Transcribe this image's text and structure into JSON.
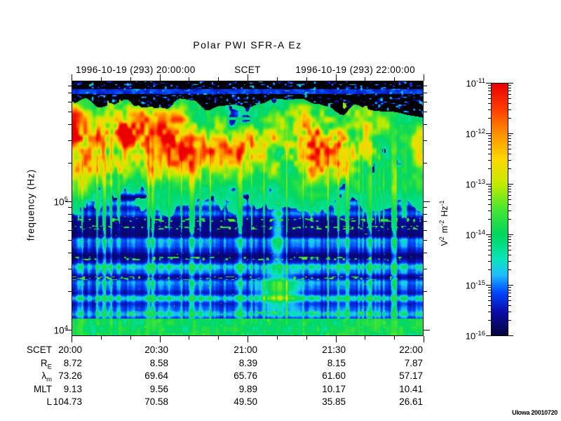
{
  "title": "Polar PWI SFR-A Ez",
  "header": {
    "start_datetime": "1996-10-19 (293) 20:00:00",
    "axis_title": "SCET",
    "end_datetime": "1996-10-19 (293) 22:00:00"
  },
  "y_axis": {
    "label": "frequency (Hz)",
    "major_ticks": [
      {
        "base": "10",
        "exp": "5"
      },
      {
        "base": "10",
        "exp": "4"
      }
    ]
  },
  "colorbar": {
    "tick_exps": [
      "-11",
      "-12",
      "-13",
      "-14",
      "-15",
      "-16"
    ],
    "tick_base": "10",
    "unit": {
      "v": "V",
      "v_exp": "2",
      "m": "m",
      "m_exp": "-2",
      "hz": "Hz",
      "hz_exp": "-1"
    }
  },
  "footer_rows": [
    {
      "label": "SCET",
      "sub": "",
      "values": [
        "20:00",
        "20:30",
        "21:00",
        "21:30",
        "22:00"
      ]
    },
    {
      "label": "R",
      "sub": "E",
      "values": [
        "8.72",
        "8.58",
        "8.39",
        "8.15",
        "7.87"
      ]
    },
    {
      "label": "λ",
      "sub": "m",
      "values": [
        "73.26",
        "69.64",
        "65.76",
        "61.60",
        "57.17"
      ]
    },
    {
      "label": "MLT",
      "sub": "",
      "values": [
        "9.13",
        "9.56",
        "9.89",
        "10.17",
        "10.41"
      ]
    },
    {
      "label": "L",
      "sub": "",
      "values": [
        "104.73",
        "70.58",
        "49.50",
        "35.85",
        "26.61"
      ]
    }
  ],
  "credit": "UIowa 20010720",
  "chart_data": {
    "type": "heatmap",
    "title": "Polar PWI SFR-A Ez",
    "xlabel": "SCET",
    "ylabel": "frequency (Hz)",
    "x_date": "1996-10-19",
    "x_doy": 293,
    "x_range": [
      "20:00:00",
      "22:00:00"
    ],
    "x_ticks": [
      "20:00",
      "20:30",
      "21:00",
      "21:30",
      "22:00"
    ],
    "y_scale": "log",
    "y_range_hz": [
      9000,
      870000
    ],
    "y_tick_values_hz": [
      10000,
      100000
    ],
    "z_unit": "V^2 m^-2 Hz^-1",
    "z_scale": "log",
    "z_range": [
      1e-16,
      1e-11
    ],
    "colorbar_tick_values": [
      1e-11,
      1e-12,
      1e-13,
      1e-14,
      1e-15,
      1e-16
    ],
    "colormap": "rainbow (dark blue -> blue -> cyan -> green -> yellow -> orange -> red)",
    "features": [
      "Intense broadband emission band (green/yellow/orange/red, ~1e-13 to 1e-11 V^2 m^-2 Hz^-1) between roughly 150 kHz and 800 kHz across the full interval, strongest cores 20:05-20:25 and 21:15-21:40",
      "Black band with sparse blue speckles at top of plot above ~700 kHz, thicker after 21:30",
      "Blue low-intensity background (~1e-15 to 1e-16) below ~100 kHz with horizontal banding and fine vertical cyan striping",
      "Cyan/green funnel-shaped enhancement near 21:10 around 15-25 kHz with a narrow plume extending up toward 60 kHz",
      "Continuous green-cyan band (~1e-14) along the bottom edge near 10 kHz",
      "Rows of sparse bright green speckles near 45, 30 and 12 kHz"
    ],
    "ephemeris": {
      "SCET": [
        "20:00",
        "20:30",
        "21:00",
        "21:30",
        "22:00"
      ],
      "RE": [
        8.72,
        8.58,
        8.39,
        8.15,
        7.87
      ],
      "lambda_m": [
        73.26,
        69.64,
        65.76,
        61.6,
        57.17
      ],
      "MLT": [
        9.13,
        9.56,
        9.89,
        10.17,
        10.41
      ],
      "L": [
        104.73,
        70.58,
        49.5,
        35.85,
        26.61
      ]
    }
  }
}
